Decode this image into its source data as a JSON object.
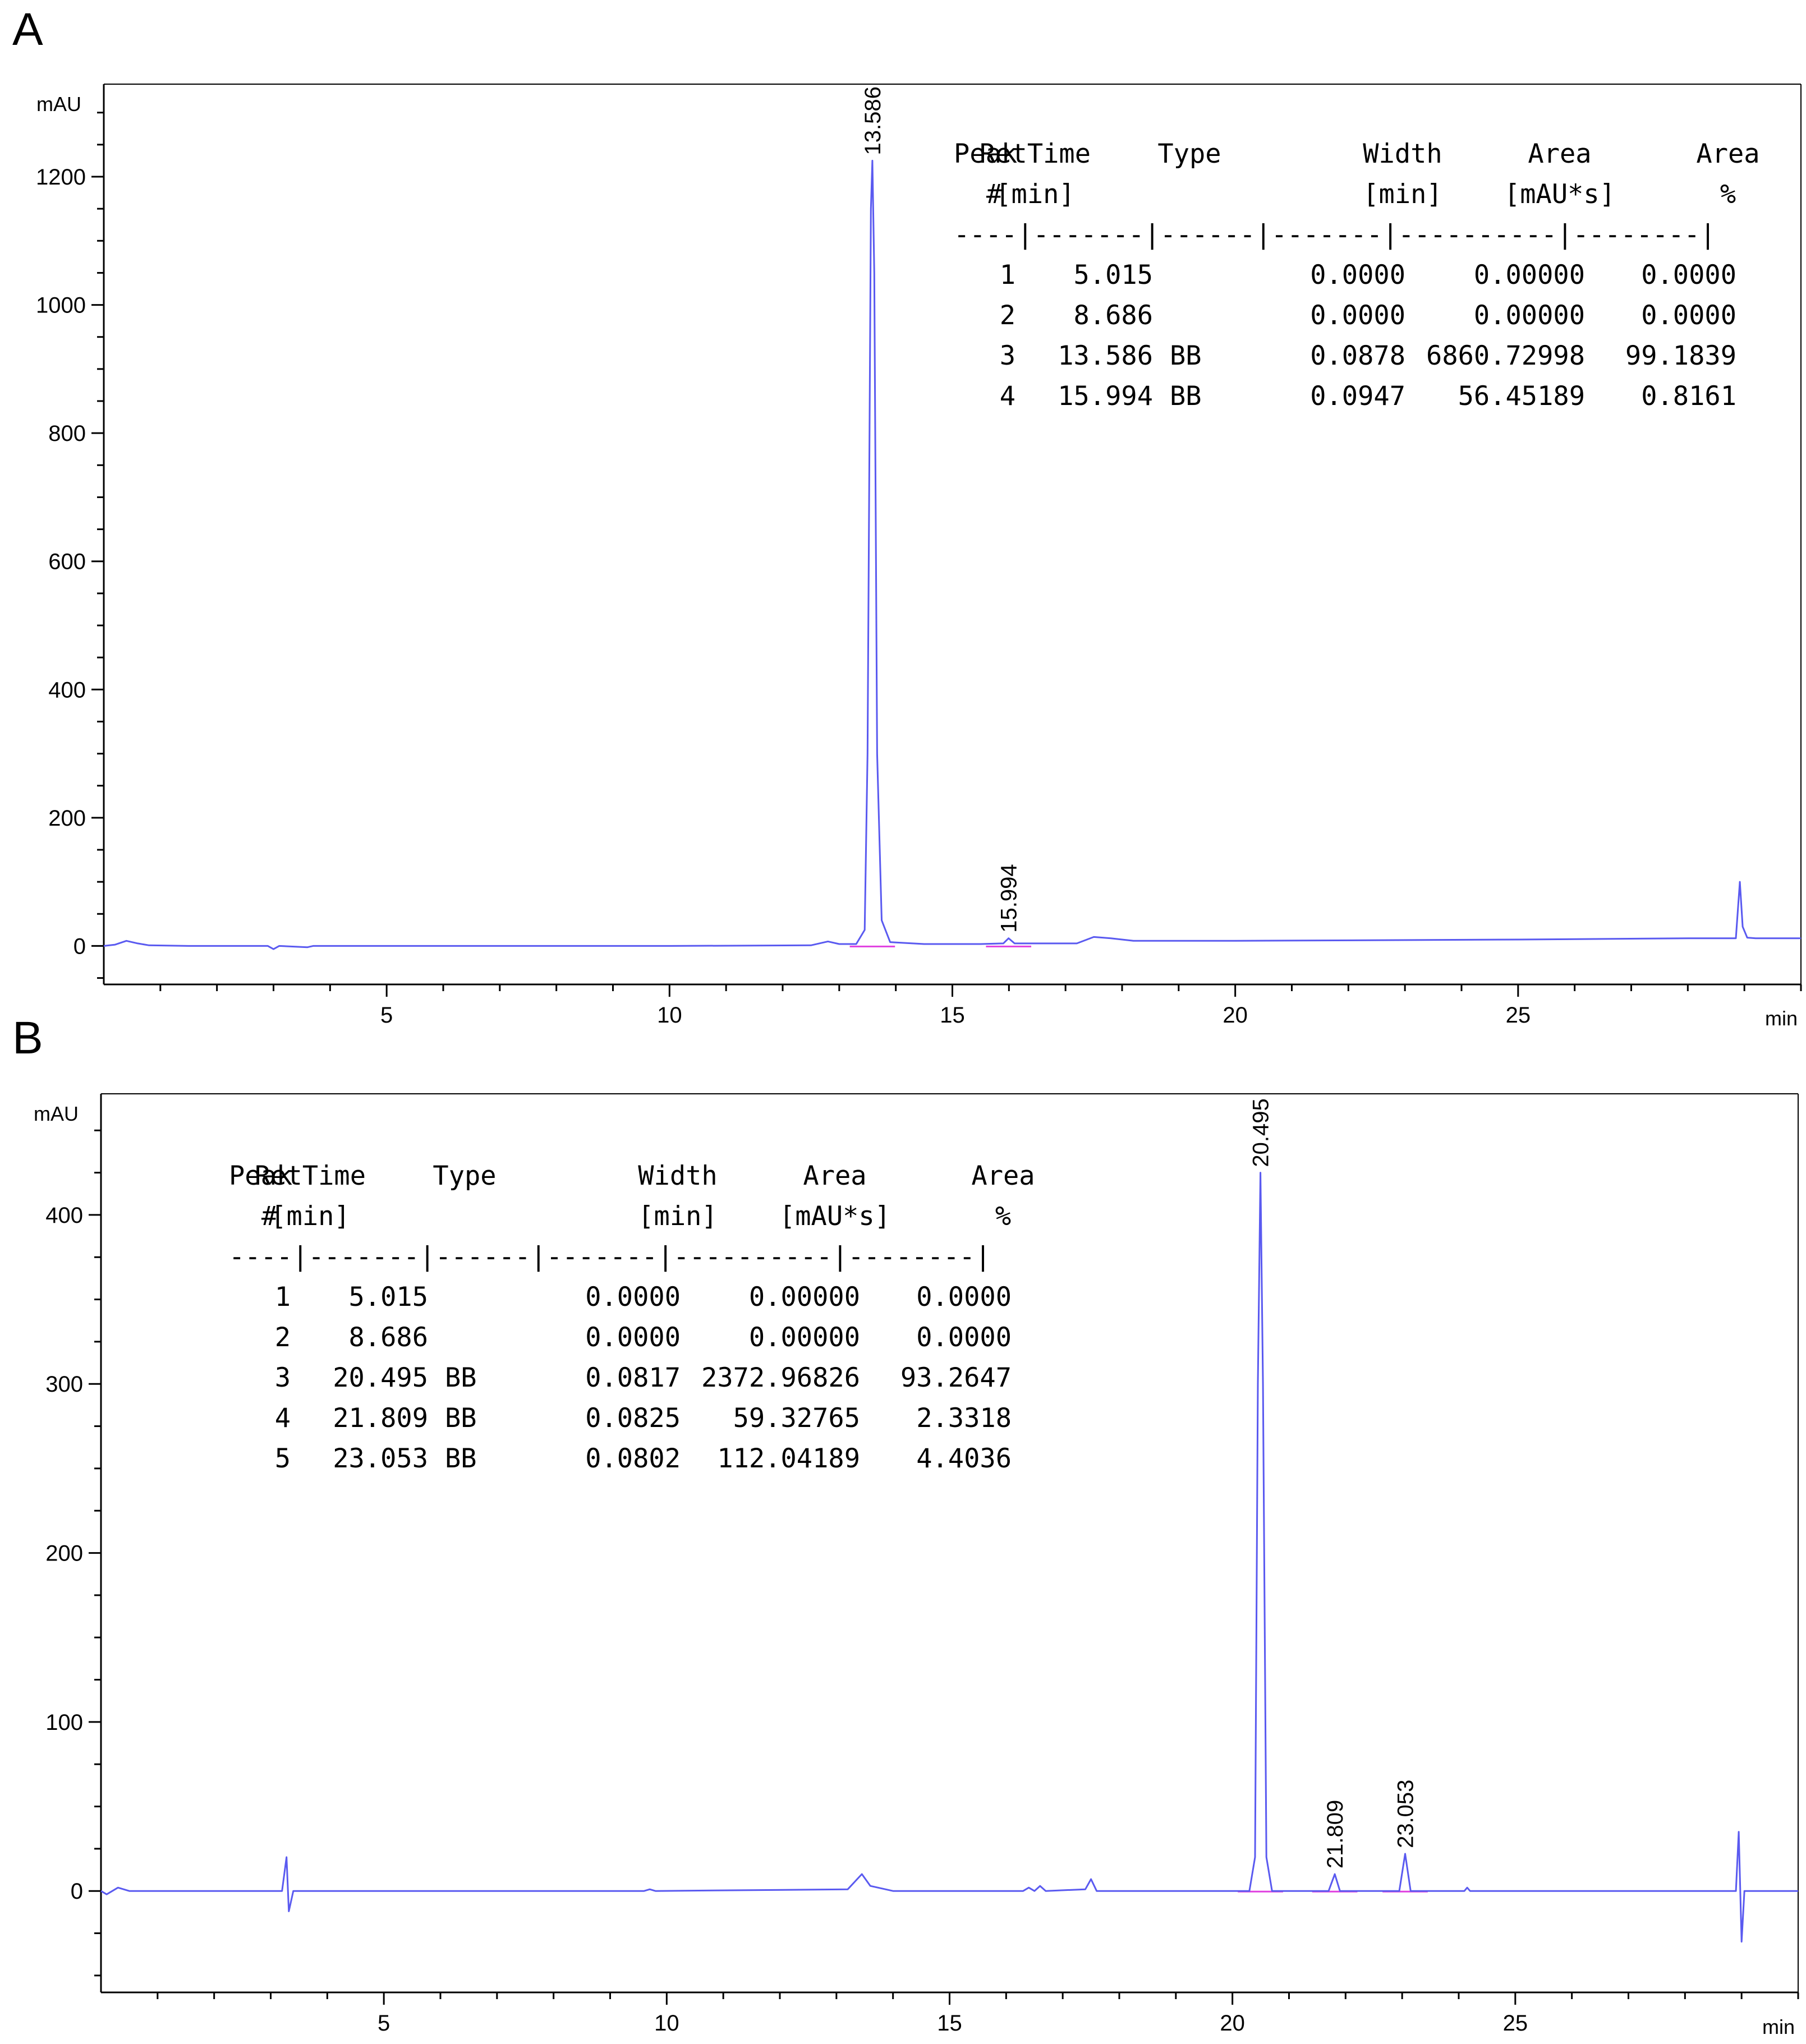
{
  "colors": {
    "trace": "#5a5af0",
    "baseline": "#e040e0",
    "axis": "#000000"
  },
  "chart_data": [
    {
      "type": "line",
      "panel": "A",
      "ylabel": "mAU",
      "xlabel": "min",
      "xlim": [
        0,
        30
      ],
      "ylim": [
        -60,
        1340
      ],
      "yticks": [
        0,
        200,
        400,
        600,
        800,
        1000,
        1200
      ],
      "xticks": [
        5,
        10,
        15,
        20,
        25
      ],
      "peaks": [
        {
          "label": "13.586",
          "x": 13.586,
          "y": 1225
        },
        {
          "label": "15.994",
          "x": 15.994,
          "y": 12
        }
      ],
      "trace": [
        [
          0.0,
          0
        ],
        [
          0.2,
          2
        ],
        [
          0.4,
          8
        ],
        [
          0.6,
          4
        ],
        [
          0.8,
          1
        ],
        [
          1.5,
          0
        ],
        [
          2.9,
          0
        ],
        [
          3.0,
          -5
        ],
        [
          3.1,
          0
        ],
        [
          3.6,
          -2
        ],
        [
          3.7,
          0
        ],
        [
          10.0,
          0
        ],
        [
          12.5,
          1
        ],
        [
          12.8,
          7
        ],
        [
          13.0,
          3
        ],
        [
          13.3,
          3
        ],
        [
          13.45,
          25
        ],
        [
          13.5,
          300
        ],
        [
          13.56,
          1150
        ],
        [
          13.586,
          1225
        ],
        [
          13.62,
          1050
        ],
        [
          13.67,
          300
        ],
        [
          13.75,
          40
        ],
        [
          13.9,
          6
        ],
        [
          14.5,
          3
        ],
        [
          15.5,
          3
        ],
        [
          15.9,
          4
        ],
        [
          15.994,
          12
        ],
        [
          16.1,
          4
        ],
        [
          17.2,
          4
        ],
        [
          17.5,
          14
        ],
        [
          17.8,
          12
        ],
        [
          18.2,
          8
        ],
        [
          20.0,
          8
        ],
        [
          25.0,
          10
        ],
        [
          28.0,
          12
        ],
        [
          28.85,
          12
        ],
        [
          28.92,
          100
        ],
        [
          28.97,
          30
        ],
        [
          29.05,
          13
        ],
        [
          29.2,
          12
        ],
        [
          30.0,
          12
        ]
      ],
      "table": {
        "headers1": [
          "Peak",
          "RetTime",
          "Type",
          "Width",
          "Area",
          "Area"
        ],
        "headers2": [
          "#",
          "[min]",
          "",
          "[min]",
          "[mAU*s]",
          "%"
        ],
        "separator": "----|-------|------|-------|----------|--------|",
        "rows": [
          [
            "1",
            "5.015",
            "",
            "0.0000",
            "0.00000",
            "0.0000"
          ],
          [
            "2",
            "8.686",
            "",
            "0.0000",
            "0.00000",
            "0.0000"
          ],
          [
            "3",
            "13.586",
            "BB",
            "0.0878",
            "6860.72998",
            "99.1839"
          ],
          [
            "4",
            "15.994",
            "BB",
            "0.0947",
            "56.45189",
            "0.8161"
          ]
        ]
      }
    },
    {
      "type": "line",
      "panel": "B",
      "ylabel": "mAU",
      "xlabel": "min",
      "xlim": [
        0,
        30
      ],
      "ylim": [
        -60,
        470
      ],
      "yticks": [
        0,
        100,
        200,
        300,
        400
      ],
      "xticks": [
        5,
        10,
        15,
        20,
        25
      ],
      "peaks": [
        {
          "label": "20.495",
          "x": 20.495,
          "y": 425
        },
        {
          "label": "21.809",
          "x": 21.809,
          "y": 10
        },
        {
          "label": "23.053",
          "x": 23.053,
          "y": 22
        }
      ],
      "trace": [
        [
          0.0,
          0
        ],
        [
          0.1,
          -2
        ],
        [
          0.3,
          2
        ],
        [
          0.5,
          0
        ],
        [
          3.2,
          0
        ],
        [
          3.28,
          20
        ],
        [
          3.32,
          -12
        ],
        [
          3.4,
          0
        ],
        [
          9.6,
          0
        ],
        [
          9.7,
          1
        ],
        [
          9.8,
          0
        ],
        [
          13.2,
          1
        ],
        [
          13.45,
          10
        ],
        [
          13.6,
          3
        ],
        [
          14.0,
          0
        ],
        [
          16.3,
          0
        ],
        [
          16.4,
          2
        ],
        [
          16.5,
          0
        ],
        [
          16.6,
          3
        ],
        [
          16.7,
          0
        ],
        [
          17.4,
          1
        ],
        [
          17.5,
          7
        ],
        [
          17.6,
          0
        ],
        [
          20.3,
          0
        ],
        [
          20.4,
          20
        ],
        [
          20.45,
          300
        ],
        [
          20.495,
          425
        ],
        [
          20.54,
          300
        ],
        [
          20.6,
          20
        ],
        [
          20.7,
          0
        ],
        [
          21.7,
          0
        ],
        [
          21.809,
          10
        ],
        [
          21.9,
          0
        ],
        [
          22.95,
          0
        ],
        [
          23.053,
          22
        ],
        [
          23.15,
          0
        ],
        [
          24.1,
          0
        ],
        [
          24.15,
          2
        ],
        [
          24.2,
          0
        ],
        [
          28.9,
          0
        ],
        [
          28.95,
          35
        ],
        [
          29.0,
          -30
        ],
        [
          29.05,
          0
        ],
        [
          30.0,
          0
        ]
      ],
      "table": {
        "headers1": [
          "Peak",
          "RetTime",
          "Type",
          "Width",
          "Area",
          "Area"
        ],
        "headers2": [
          "#",
          "[min]",
          "",
          "[min]",
          "[mAU*s]",
          "%"
        ],
        "separator": "----|-------|------|-------|----------|--------|",
        "rows": [
          [
            "1",
            "5.015",
            "",
            "0.0000",
            "0.00000",
            "0.0000"
          ],
          [
            "2",
            "8.686",
            "",
            "0.0000",
            "0.00000",
            "0.0000"
          ],
          [
            "3",
            "20.495",
            "BB",
            "0.0817",
            "2372.96826",
            "93.2647"
          ],
          [
            "4",
            "21.809",
            "BB",
            "0.0825",
            "59.32765",
            "2.3318"
          ],
          [
            "5",
            "23.053",
            "BB",
            "0.0802",
            "112.04189",
            "4.4036"
          ]
        ]
      }
    }
  ]
}
